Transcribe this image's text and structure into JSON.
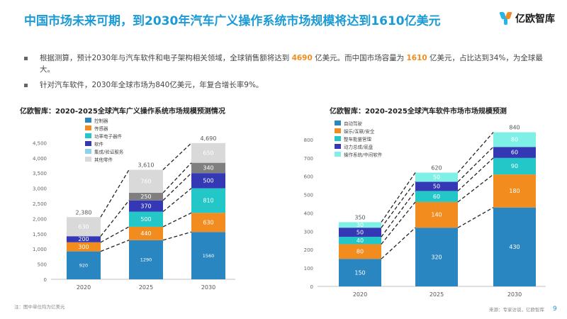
{
  "header": {
    "title": "中国市场未来可期，到2030年汽车广义操作系统市场规模将达到1610亿美元",
    "logo_text": "亿欧智库"
  },
  "bullets": [
    {
      "parts": [
        "根据测算，预计2030年与汽车软件和电子架构相关领域，全球销售额将达到 ",
        "4690",
        " 亿美元。而中国市场容量为 ",
        "1610",
        " 亿美元，占比达到34%，为全球最大。"
      ]
    },
    {
      "parts": [
        "针对汽车软件，2030年全球市场为840亿美元，年复合增长率9%。"
      ]
    }
  ],
  "colors": {
    "accent": "#1b9bd6",
    "highlight": "#f28c1e",
    "left_series": [
      "#2a86c1",
      "#f28c1e",
      "#23c7c7",
      "#3438b5",
      "#8bd3ea",
      "#d9d9d9"
    ],
    "left_extra": "#7f7f7f",
    "right_series": [
      "#2a86c1",
      "#f28c1e",
      "#23c7c7",
      "#3438b5",
      "#7ef0e6"
    ]
  },
  "chart_data": [
    {
      "type": "bar",
      "stacked": true,
      "title": "亿欧智库：2020-2025全球汽车广义操作系统市场规模预测情况",
      "categories": [
        "2020",
        "2025",
        "2030"
      ],
      "series": [
        {
          "name": "控制器",
          "values": [
            920,
            1290,
            1560
          ]
        },
        {
          "name": "传感器",
          "values": [
            300,
            440,
            630
          ]
        },
        {
          "name": "功率电子器件",
          "values": [
            null,
            500,
            810
          ]
        },
        {
          "name": "软件",
          "values": [
            200,
            370,
            500
          ]
        },
        {
          "name": "集成/验证服务",
          "values": [
            null,
            null,
            null
          ]
        },
        {
          "name": "",
          "values": [
            null,
            250,
            340
          ]
        },
        {
          "name": "其他零件",
          "values": [
            630,
            760,
            650
          ]
        }
      ],
      "totals": [
        2380,
        3610,
        4690
      ],
      "total_labels": [
        "2,380",
        "3,610",
        "4,690"
      ],
      "y_ticks": [
        "0",
        "500",
        "1,000",
        "1,500",
        "2,000",
        "2,500",
        "3,000",
        "3,500",
        "4,000",
        "4,500"
      ],
      "ylim": [
        0,
        5000
      ],
      "legend": "top-left",
      "source_note": "注：图中单位均为亿美元"
    },
    {
      "type": "bar",
      "stacked": true,
      "title": "亿欧智库：2020-2025全球汽车软件市场市场规模预测",
      "categories": [
        "2020",
        "2025",
        "2030"
      ],
      "series": [
        {
          "name": "自动驾驶",
          "values": [
            150,
            320,
            430
          ]
        },
        {
          "name": "娱乐/互联/安全",
          "values": [
            80,
            140,
            180
          ]
        },
        {
          "name": "整车能量管理",
          "values": [
            40,
            60,
            90
          ]
        },
        {
          "name": "动力总成/底盘",
          "values": [
            50,
            50,
            60
          ]
        },
        {
          "name": "操作系统/中间软件",
          "values": [
            30,
            50,
            80
          ]
        }
      ],
      "totals": [
        350,
        620,
        840
      ],
      "y_ticks": [
        "0",
        "100",
        "200",
        "300",
        "400",
        "500",
        "600",
        "700",
        "800"
      ],
      "ylim": [
        0,
        850
      ],
      "legend": "top-left",
      "source_note": "来源：专家访谈，亿欧智库"
    }
  ],
  "page_number": "9"
}
